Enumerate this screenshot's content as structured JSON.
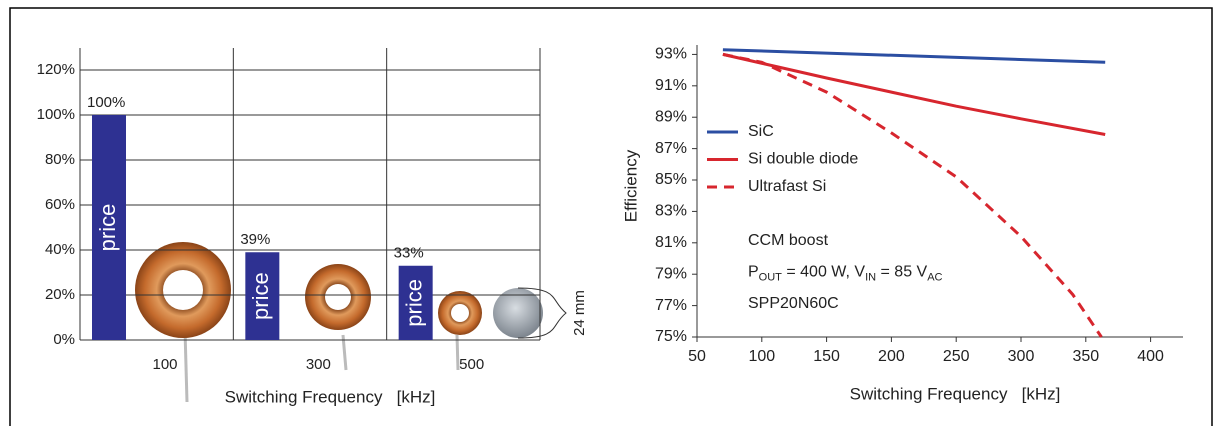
{
  "chart_data": [
    {
      "type": "bar",
      "categories": [
        "100",
        "300",
        "500"
      ],
      "values": [
        100,
        39,
        33
      ],
      "value_labels": [
        "100%",
        "39%",
        "33%"
      ],
      "bar_text": "price",
      "color": "#2e3192",
      "ylim": [
        0,
        120
      ],
      "yticks": [
        {
          "value": 0,
          "label": "0%"
        },
        {
          "value": 20,
          "label": "20%"
        },
        {
          "value": 40,
          "label": "40%"
        },
        {
          "value": 60,
          "label": "60%"
        },
        {
          "value": 80,
          "label": "80%"
        },
        {
          "value": 100,
          "label": "100%"
        },
        {
          "value": 120,
          "label": "120%"
        }
      ],
      "xlabel": "Switching Frequency   [kHz]",
      "annotation": "24 mm",
      "grid": true
    },
    {
      "type": "line",
      "xlabel": "Switching Frequency   [kHz]",
      "ylabel": "Efficiency",
      "xlim": [
        50,
        425
      ],
      "xticks": [
        50,
        100,
        150,
        200,
        250,
        300,
        350,
        400
      ],
      "ylim": [
        75,
        93.6
      ],
      "yticks": [
        {
          "value": 75,
          "label": "75%"
        },
        {
          "value": 77,
          "label": "77%"
        },
        {
          "value": 79,
          "label": "79%"
        },
        {
          "value": 81,
          "label": "81%"
        },
        {
          "value": 83,
          "label": "83%"
        },
        {
          "value": 85,
          "label": "85%"
        },
        {
          "value": 87,
          "label": "87%"
        },
        {
          "value": 89,
          "label": "89%"
        },
        {
          "value": 91,
          "label": "91%"
        },
        {
          "value": 93,
          "label": "93%"
        }
      ],
      "legend": "upper left",
      "series": [
        {
          "name": "SiC",
          "color": "#2b4ea2",
          "linestyle": "solid",
          "x": [
            70,
            365
          ],
          "values": [
            93.3,
            92.5
          ]
        },
        {
          "name": "Si double diode",
          "color": "#d7262e",
          "linestyle": "solid",
          "x": [
            70,
            150,
            200,
            250,
            300,
            365
          ],
          "values": [
            93.0,
            91.5,
            90.6,
            89.7,
            88.9,
            87.9
          ]
        },
        {
          "name": "Ultrafast Si",
          "color": "#d7262e",
          "linestyle": "dashed",
          "x": [
            70,
            100,
            150,
            200,
            250,
            300,
            340,
            362
          ],
          "values": [
            93.0,
            92.5,
            90.6,
            88.0,
            85.2,
            81.4,
            77.7,
            75.0
          ]
        }
      ],
      "annotations": [
        [
          {
            "text": "CCM boost"
          }
        ],
        [
          {
            "text": "P"
          },
          {
            "text": "OUT",
            "sub": true
          },
          {
            "text": " = 400 W, V"
          },
          {
            "text": "IN",
            "sub": true
          },
          {
            "text": " = 85 V"
          },
          {
            "text": "AC",
            "sub": true
          }
        ],
        [
          {
            "text": "SPP20N60C"
          }
        ]
      ]
    }
  ]
}
